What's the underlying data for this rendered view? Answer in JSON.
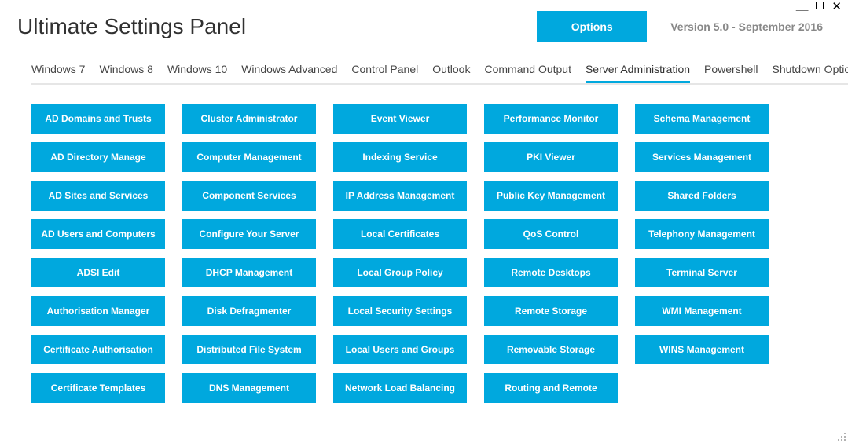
{
  "window": {
    "title": "Ultimate Settings Panel",
    "version_text": "Version 5.0 - September 2016",
    "options_label": "Options"
  },
  "colors": {
    "accent": "#00a8de",
    "background": "#ffffff",
    "text": "#333333",
    "muted": "#888888",
    "tab_border": "#e6e6e6"
  },
  "tabs": {
    "items": [
      {
        "label": "Windows 7",
        "active": false
      },
      {
        "label": "Windows 8",
        "active": false
      },
      {
        "label": "Windows 10",
        "active": false
      },
      {
        "label": "Windows Advanced",
        "active": false
      },
      {
        "label": "Control Panel",
        "active": false
      },
      {
        "label": "Outlook",
        "active": false
      },
      {
        "label": "Command Output",
        "active": false
      },
      {
        "label": "Server Administration",
        "active": true
      },
      {
        "label": "Powershell",
        "active": false
      },
      {
        "label": "Shutdown Options",
        "active": false
      }
    ],
    "overflow_indicator": "I"
  },
  "tiles": {
    "columns": 5,
    "rows": 8,
    "tile_color": "#00a8de",
    "tile_text_color": "#ffffff",
    "items": [
      [
        "AD Domains and Trusts",
        "Cluster Administrator",
        "Event Viewer",
        "Performance Monitor",
        "Schema Management"
      ],
      [
        "AD Directory Manage",
        "Computer Management",
        "Indexing Service",
        "PKI Viewer",
        "Services Management"
      ],
      [
        "AD Sites and Services",
        "Component Services",
        "IP Address Management",
        "Public Key Management",
        "Shared Folders"
      ],
      [
        "AD Users and Computers",
        "Configure Your Server",
        "Local Certificates",
        "QoS Control",
        "Telephony Management"
      ],
      [
        "ADSI Edit",
        "DHCP Management",
        "Local Group Policy",
        "Remote Desktops",
        "Terminal Server"
      ],
      [
        "Authorisation Manager",
        "Disk Defragmenter",
        "Local Security Settings",
        "Remote Storage",
        "WMI Management"
      ],
      [
        "Certificate Authorisation",
        "Distributed File System",
        "Local Users and Groups",
        "Removable Storage",
        "WINS Management"
      ],
      [
        "Certificate Templates",
        "DNS Management",
        "Network Load Balancing",
        "Routing and Remote",
        ""
      ]
    ]
  }
}
